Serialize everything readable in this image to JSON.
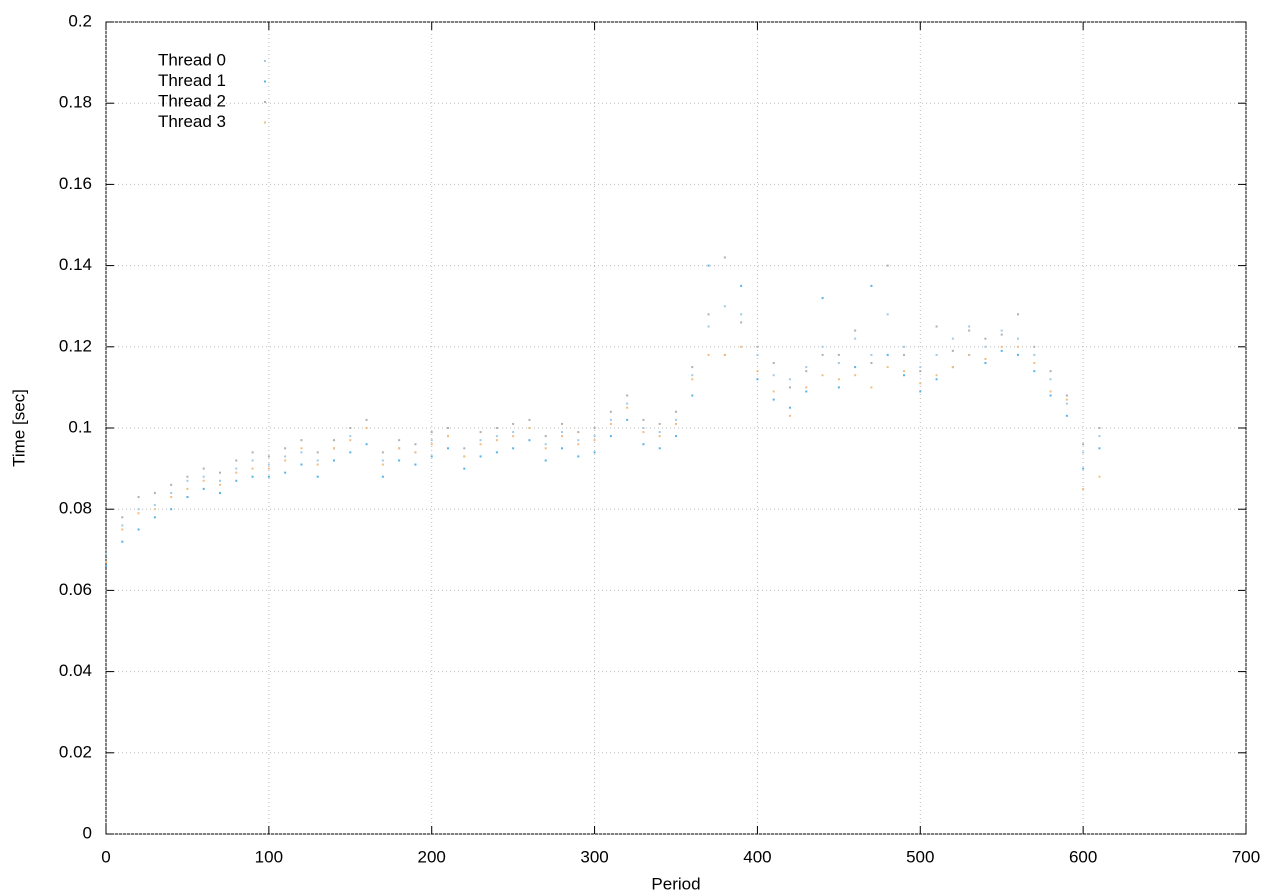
{
  "chart_data": {
    "type": "scatter",
    "x_label": "Period",
    "y_label": "Time [sec]",
    "xlim": [
      0,
      700
    ],
    "xticks": [
      0,
      100,
      200,
      300,
      400,
      500,
      600,
      700
    ],
    "ylim": [
      0,
      0.2
    ],
    "yticks": [
      0,
      0.02,
      0.04,
      0.06,
      0.08,
      0.1,
      0.12,
      0.14,
      0.16,
      0.18,
      0.2
    ],
    "grid": true,
    "legend": "upper-left",
    "x": [
      0,
      10,
      20,
      30,
      40,
      50,
      60,
      70,
      80,
      90,
      100,
      110,
      120,
      130,
      140,
      150,
      160,
      170,
      180,
      190,
      200,
      210,
      220,
      230,
      240,
      250,
      260,
      270,
      280,
      290,
      300,
      310,
      320,
      330,
      340,
      350,
      360,
      370,
      380,
      390,
      400,
      410,
      420,
      430,
      440,
      450,
      460,
      470,
      480,
      490,
      500,
      510,
      520,
      530,
      540,
      550,
      560,
      570,
      580,
      590,
      600,
      610
    ],
    "series": [
      {
        "name": "Thread 0",
        "color": "#9fcbe8",
        "values": [
          0.069,
          0.076,
          0.08,
          0.081,
          0.084,
          0.087,
          0.088,
          0.087,
          0.09,
          0.092,
          0.091,
          0.093,
          0.094,
          0.092,
          0.095,
          0.098,
          0.1,
          0.092,
          0.095,
          0.094,
          0.097,
          0.098,
          0.093,
          0.097,
          0.098,
          0.099,
          0.1,
          0.096,
          0.099,
          0.097,
          0.098,
          0.102,
          0.106,
          0.1,
          0.099,
          0.102,
          0.113,
          0.125,
          0.13,
          0.128,
          0.118,
          0.113,
          0.112,
          0.115,
          0.12,
          0.116,
          0.122,
          0.118,
          0.128,
          0.12,
          0.115,
          0.118,
          0.122,
          0.125,
          0.12,
          0.124,
          0.122,
          0.118,
          0.112,
          0.106,
          0.094,
          0.098
        ]
      },
      {
        "name": "Thread 1",
        "color": "#56b4e9",
        "values": [
          0.066,
          0.072,
          0.075,
          0.078,
          0.08,
          0.083,
          0.085,
          0.084,
          0.087,
          0.088,
          0.088,
          0.089,
          0.091,
          0.088,
          0.092,
          0.094,
          0.096,
          0.088,
          0.092,
          0.091,
          0.093,
          0.095,
          0.09,
          0.093,
          0.094,
          0.095,
          0.097,
          0.092,
          0.095,
          0.093,
          0.094,
          0.098,
          0.102,
          0.096,
          0.095,
          0.098,
          0.108,
          0.14,
          0.118,
          0.135,
          0.112,
          0.107,
          0.105,
          0.109,
          0.132,
          0.11,
          0.115,
          0.135,
          0.118,
          0.113,
          0.109,
          0.112,
          0.115,
          0.118,
          0.116,
          0.119,
          0.118,
          0.114,
          0.108,
          0.103,
          0.09,
          0.095
        ]
      },
      {
        "name": "Thread 2",
        "color": "#b0b0b0",
        "values": [
          0.07,
          0.078,
          0.083,
          0.084,
          0.086,
          0.088,
          0.09,
          0.089,
          0.092,
          0.094,
          0.093,
          0.095,
          0.097,
          0.094,
          0.097,
          0.1,
          0.102,
          0.094,
          0.097,
          0.096,
          0.099,
          0.1,
          0.095,
          0.099,
          0.1,
          0.101,
          0.102,
          0.098,
          0.101,
          0.099,
          0.1,
          0.104,
          0.108,
          0.102,
          0.101,
          0.104,
          0.115,
          0.128,
          0.142,
          0.126,
          0.12,
          0.116,
          0.11,
          0.114,
          0.118,
          0.118,
          0.124,
          0.116,
          0.14,
          0.118,
          0.114,
          0.125,
          0.119,
          0.124,
          0.122,
          0.123,
          0.128,
          0.12,
          0.114,
          0.108,
          0.096,
          0.1
        ]
      },
      {
        "name": "Thread 3",
        "color": "#f4bd80",
        "values": [
          0.067,
          0.075,
          0.079,
          0.08,
          0.083,
          0.085,
          0.087,
          0.086,
          0.089,
          0.09,
          0.09,
          0.092,
          0.095,
          0.091,
          0.095,
          0.097,
          0.1,
          0.091,
          0.095,
          0.094,
          0.096,
          0.098,
          0.093,
          0.096,
          0.097,
          0.098,
          0.1,
          0.095,
          0.098,
          0.096,
          0.097,
          0.101,
          0.105,
          0.099,
          0.098,
          0.101,
          0.112,
          0.118,
          0.118,
          0.12,
          0.114,
          0.109,
          0.103,
          0.11,
          0.113,
          0.112,
          0.113,
          0.11,
          0.115,
          0.114,
          0.111,
          0.113,
          0.115,
          0.118,
          0.117,
          0.12,
          0.12,
          0.116,
          0.109,
          0.107,
          0.085,
          0.088
        ]
      }
    ]
  }
}
